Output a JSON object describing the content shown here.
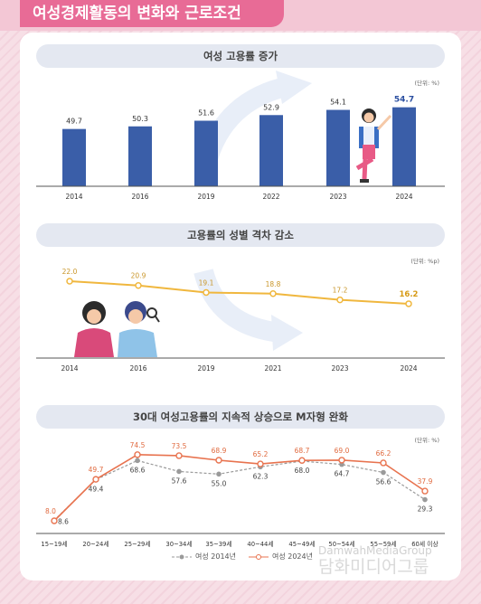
{
  "header": {
    "title": "여성경제활동의 변화와 근로조건"
  },
  "chart_data": [
    {
      "type": "bar",
      "title": "여성 고용률 증가",
      "unit": "(단위: %)",
      "categories": [
        "2014",
        "2016",
        "2019",
        "2022",
        "2023",
        "2024"
      ],
      "values": [
        49.7,
        50.3,
        51.6,
        52.9,
        54.1,
        54.7
      ],
      "color": "#3a5ea8",
      "highlight_last": true
    },
    {
      "type": "line",
      "title": "고용률의 성별 격차 감소",
      "unit": "(단위: %p)",
      "categories": [
        "2014",
        "2016",
        "2019",
        "2021",
        "2023",
        "2024"
      ],
      "values": [
        22.0,
        20.9,
        19.1,
        18.8,
        17.2,
        16.2
      ],
      "color": "#f0b73e",
      "highlight_last": true
    },
    {
      "type": "line",
      "title": "30대 여성고용률의 지속적 상승으로 M자형 완화",
      "unit": "(단위: %)",
      "categories": [
        "15~19세",
        "20~24세",
        "25~29세",
        "30~34세",
        "35~39세",
        "40~44세",
        "45~49세",
        "50~54세",
        "55~59세",
        "60세 이상"
      ],
      "series": [
        {
          "name": "여성 2014년",
          "values": [
            8.6,
            49.4,
            68.6,
            57.6,
            55.0,
            62.3,
            68.0,
            64.7,
            56.6,
            29.3
          ],
          "color": "#9a9a9a",
          "dashed": true
        },
        {
          "name": "여성 2024년",
          "values": [
            8.0,
            49.7,
            74.5,
            73.5,
            68.9,
            65.2,
            68.7,
            69.0,
            66.2,
            37.9
          ],
          "color": "#e8734f",
          "dashed": false
        }
      ]
    }
  ],
  "watermark": {
    "line1": "DamwahMediaGroup",
    "line2": "담화미디어그룹"
  }
}
